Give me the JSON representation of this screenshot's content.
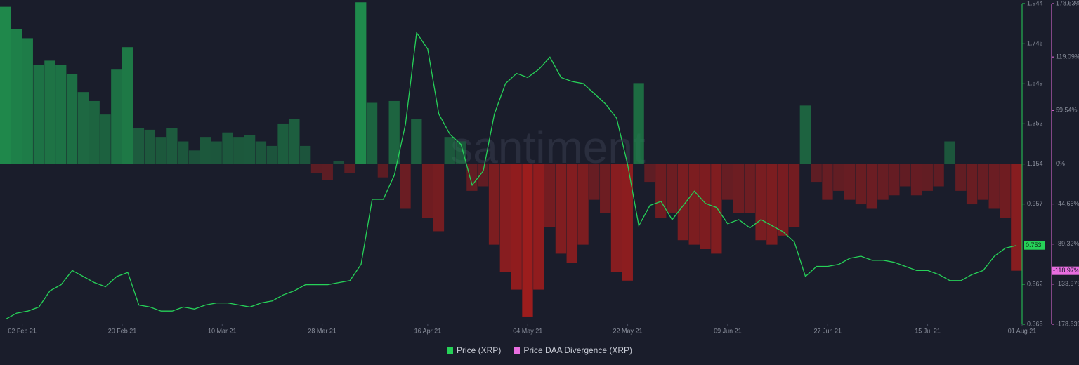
{
  "chart_data": {
    "type": "combo",
    "watermark": "santiment",
    "x": [
      "2021-01-30",
      "2021-02-01",
      "2021-02-03",
      "2021-02-05",
      "2021-02-07",
      "2021-02-09",
      "2021-02-11",
      "2021-02-13",
      "2021-02-15",
      "2021-02-17",
      "2021-02-19",
      "2021-02-21",
      "2021-02-23",
      "2021-02-25",
      "2021-02-27",
      "2021-03-01",
      "2021-03-03",
      "2021-03-05",
      "2021-03-07",
      "2021-03-09",
      "2021-03-11",
      "2021-03-13",
      "2021-03-15",
      "2021-03-17",
      "2021-03-19",
      "2021-03-21",
      "2021-03-23",
      "2021-03-25",
      "2021-03-27",
      "2021-03-29",
      "2021-03-31",
      "2021-04-02",
      "2021-04-04",
      "2021-04-06",
      "2021-04-08",
      "2021-04-10",
      "2021-04-12",
      "2021-04-14",
      "2021-04-16",
      "2021-04-18",
      "2021-04-20",
      "2021-04-22",
      "2021-04-24",
      "2021-04-26",
      "2021-04-28",
      "2021-04-30",
      "2021-05-02",
      "2021-05-04",
      "2021-05-06",
      "2021-05-08",
      "2021-05-10",
      "2021-05-12",
      "2021-05-14",
      "2021-05-16",
      "2021-05-18",
      "2021-05-20",
      "2021-05-22",
      "2021-05-24",
      "2021-05-26",
      "2021-05-28",
      "2021-05-30",
      "2021-06-01",
      "2021-06-03",
      "2021-06-05",
      "2021-06-07",
      "2021-06-09",
      "2021-06-11",
      "2021-06-13",
      "2021-06-15",
      "2021-06-17",
      "2021-06-19",
      "2021-06-21",
      "2021-06-23",
      "2021-06-25",
      "2021-06-27",
      "2021-06-29",
      "2021-07-01",
      "2021-07-03",
      "2021-07-05",
      "2021-07-07",
      "2021-07-09",
      "2021-07-11",
      "2021-07-13",
      "2021-07-15",
      "2021-07-17",
      "2021-07-19",
      "2021-07-21",
      "2021-07-23",
      "2021-07-25",
      "2021-07-27",
      "2021-07-29",
      "2021-07-31"
    ],
    "xlim": [
      "2021-01-29",
      "2021-08-01"
    ],
    "xticks": [
      {
        "value": "2021-02-02",
        "label": "02 Feb 21"
      },
      {
        "value": "2021-02-20",
        "label": "20 Feb 21"
      },
      {
        "value": "2021-03-10",
        "label": "10 Mar 21"
      },
      {
        "value": "2021-03-28",
        "label": "28 Mar 21"
      },
      {
        "value": "2021-04-16",
        "label": "16 Apr 21"
      },
      {
        "value": "2021-05-04",
        "label": "04 May 21"
      },
      {
        "value": "2021-05-22",
        "label": "22 May 21"
      },
      {
        "value": "2021-06-09",
        "label": "09 Jun 21"
      },
      {
        "value": "2021-06-27",
        "label": "27 Jun 21"
      },
      {
        "value": "2021-07-15",
        "label": "15 Jul 21"
      },
      {
        "value": "2021-08-01",
        "label": "01 Aug 21"
      }
    ],
    "ylim": [
      0.365,
      1.944
    ],
    "yticks": [
      1.944,
      1.746,
      1.549,
      1.352,
      1.154,
      0.957,
      0.562,
      0.365
    ],
    "y2lim": [
      -178.63,
      178.63
    ],
    "y2ticks": [
      {
        "value": 178.63,
        "label": "178.63%"
      },
      {
        "value": 119.09,
        "label": "119.09%"
      },
      {
        "value": 59.54,
        "label": "59.54%"
      },
      {
        "value": 0,
        "label": "0%"
      },
      {
        "value": -44.66,
        "label": "-44.66%"
      },
      {
        "value": -89.32,
        "label": "-89.32%"
      },
      {
        "value": -133.97,
        "label": "-133.97%"
      },
      {
        "value": -178.63,
        "label": "-178.63%"
      }
    ],
    "series": [
      {
        "name": "Price DAA Divergence (XRP)",
        "type": "bar",
        "axis": "y2",
        "color": "#e96ee0",
        "positive_color": "#1f8a4c",
        "negative_color": "#a11d1d",
        "values": [
          175,
          150,
          140,
          110,
          115,
          110,
          100,
          80,
          70,
          55,
          105,
          130,
          40,
          38,
          30,
          40,
          25,
          15,
          30,
          25,
          35,
          30,
          32,
          25,
          20,
          45,
          50,
          20,
          -10,
          -18,
          3,
          -10,
          180,
          68,
          -15,
          70,
          -50,
          50,
          -60,
          -75,
          30,
          25,
          -30,
          -25,
          -90,
          -120,
          -140,
          -170,
          -140,
          -70,
          -100,
          -110,
          -90,
          -40,
          -55,
          -120,
          -130,
          90,
          -20,
          -60,
          -55,
          -85,
          -90,
          -95,
          -100,
          -40,
          -55,
          -55,
          -85,
          -90,
          -80,
          -70,
          65,
          -20,
          -40,
          -30,
          -40,
          -45,
          -50,
          -40,
          -35,
          -25,
          -35,
          -30,
          -25,
          25,
          -30,
          -45,
          -40,
          -50,
          -60,
          -118.97
        ],
        "last_label": {
          "value": -118.97,
          "label": "-118.97%"
        }
      },
      {
        "name": "Price (XRP)",
        "type": "line",
        "axis": "y",
        "color": "#26d158",
        "values": [
          0.39,
          0.42,
          0.43,
          0.45,
          0.53,
          0.56,
          0.63,
          0.6,
          0.57,
          0.55,
          0.6,
          0.62,
          0.46,
          0.45,
          0.43,
          0.43,
          0.45,
          0.44,
          0.46,
          0.47,
          0.47,
          0.46,
          0.45,
          0.47,
          0.48,
          0.51,
          0.53,
          0.56,
          0.56,
          0.56,
          0.57,
          0.58,
          0.66,
          0.98,
          0.98,
          1.1,
          1.35,
          1.8,
          1.72,
          1.4,
          1.3,
          1.25,
          1.05,
          1.12,
          1.4,
          1.55,
          1.6,
          1.58,
          1.62,
          1.68,
          1.58,
          1.56,
          1.55,
          1.5,
          1.45,
          1.38,
          1.15,
          0.85,
          0.95,
          0.97,
          0.88,
          0.95,
          1.02,
          0.96,
          0.94,
          0.86,
          0.88,
          0.84,
          0.88,
          0.85,
          0.82,
          0.77,
          0.6,
          0.65,
          0.65,
          0.66,
          0.69,
          0.7,
          0.68,
          0.68,
          0.67,
          0.65,
          0.63,
          0.63,
          0.61,
          0.58,
          0.58,
          0.61,
          0.63,
          0.7,
          0.74,
          0.753
        ],
        "last_label": 0.753
      }
    ]
  }
}
